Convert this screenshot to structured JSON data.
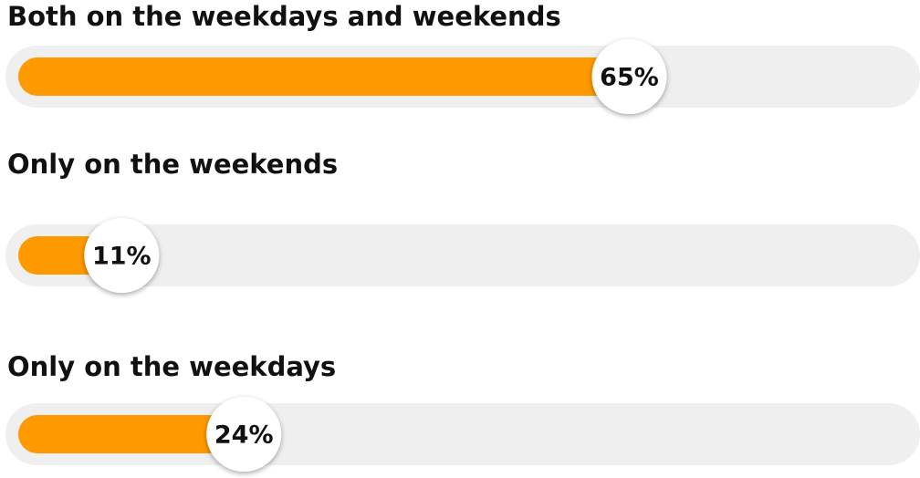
{
  "chart_data": {
    "type": "progress",
    "categories": [
      "Both on the weekdays and weekends",
      "Only on the weekends",
      "Only on the weekdays"
    ],
    "values": [
      65,
      11,
      24
    ],
    "value_labels": [
      "65%",
      "11%",
      "24%"
    ],
    "xlim": [
      0,
      100
    ],
    "color": "#ff9900",
    "track_color": "#efefef"
  }
}
